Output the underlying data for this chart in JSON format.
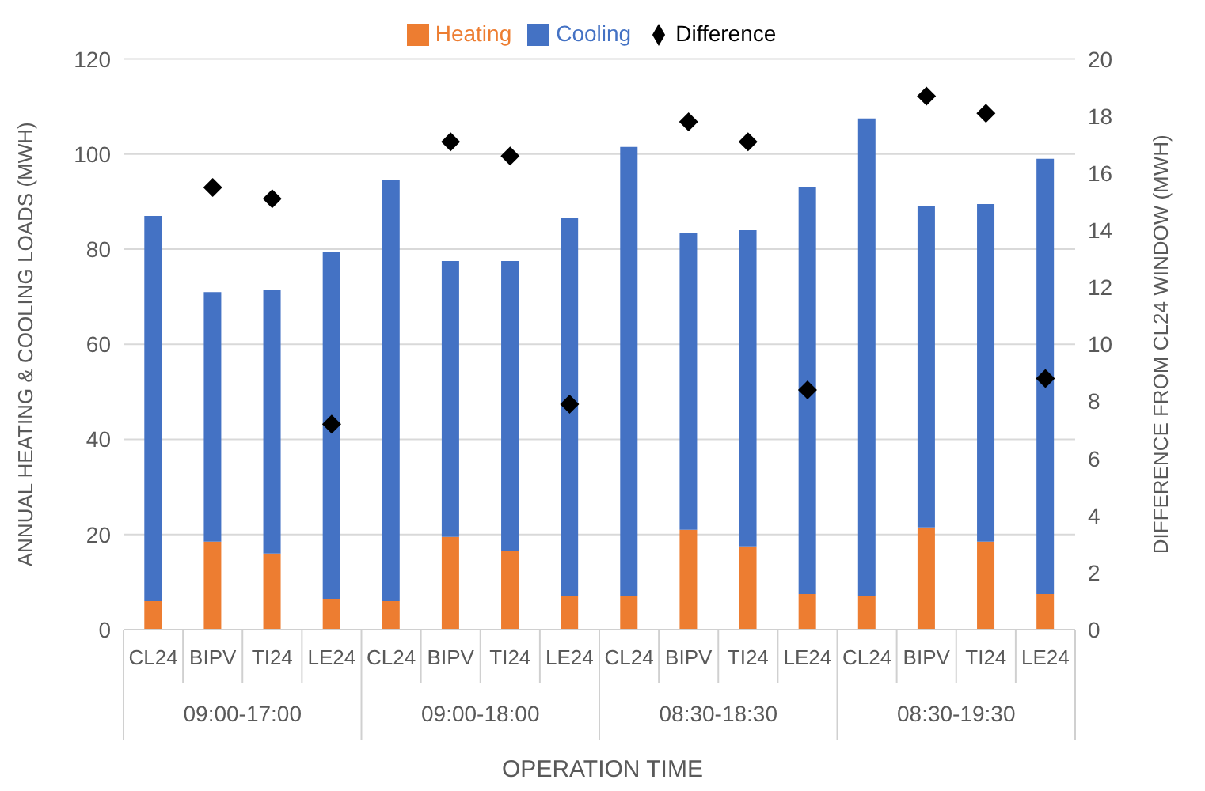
{
  "chart_data": {
    "type": "bar",
    "stacked": true,
    "categories": [
      "CL24",
      "BIPV",
      "TI24",
      "LE24",
      "CL24",
      "BIPV",
      "TI24",
      "LE24",
      "CL24",
      "BIPV",
      "TI24",
      "LE24",
      "CL24",
      "BIPV",
      "TI24",
      "LE24"
    ],
    "annotations": [
      "09:00-17:00",
      "09:00-18:00",
      "08:30-18:30",
      "08:30-19:30"
    ],
    "xlabel": "OPERATION TIME",
    "ylabel": "ANNUAL HEATING & COOLING LOADS (MWH)",
    "y2label": "DIFFERENCE FROM CL24 WINDOW (MWH)",
    "ylim": [
      0,
      120
    ],
    "yticks": [
      0,
      20,
      40,
      60,
      80,
      100,
      120
    ],
    "y2lim": [
      0,
      20
    ],
    "y2ticks": [
      0,
      2,
      4,
      6,
      8,
      10,
      12,
      14,
      16,
      18,
      20
    ],
    "grid": "y",
    "legend": "top",
    "series": [
      {
        "name": "Heating",
        "color": "#ed7d31",
        "values": [
          6,
          18.5,
          16,
          6.5,
          6,
          19.5,
          16.5,
          7,
          7,
          21,
          17.5,
          7.5,
          7,
          21.5,
          18.5,
          7.5
        ]
      },
      {
        "name": "Cooling",
        "color": "#4472c4",
        "values": [
          81,
          52.5,
          55.5,
          73,
          88.5,
          58,
          61,
          79.5,
          94.5,
          62.5,
          66.5,
          85.5,
          100.5,
          67.5,
          71,
          91.5
        ]
      },
      {
        "name": "Difference",
        "type": "scatter",
        "axis": "y2",
        "marker": "diamond",
        "color": "#000000",
        "values": [
          null,
          15.5,
          15.1,
          7.2,
          null,
          17.1,
          16.6,
          7.9,
          null,
          17.8,
          17.1,
          8.4,
          null,
          18.7,
          18.1,
          8.8
        ]
      }
    ]
  }
}
